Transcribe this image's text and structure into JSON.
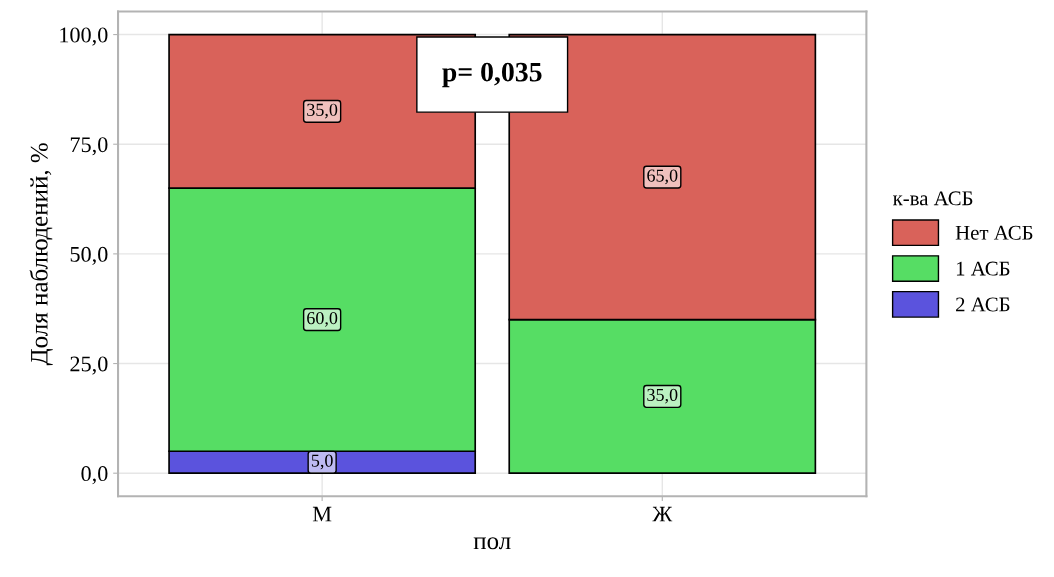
{
  "chart_data": {
    "type": "bar",
    "stacked": true,
    "categories": [
      "М",
      "Ж"
    ],
    "series": [
      {
        "name": "2 АСБ",
        "color": "#5b53dd",
        "values": [
          5,
          0
        ],
        "value_labels": [
          "5,0",
          null
        ]
      },
      {
        "name": "1 АСБ",
        "color": "#56dd64",
        "values": [
          60,
          35
        ],
        "value_labels": [
          "60,0",
          "35,0"
        ]
      },
      {
        "name": "Нет АСБ",
        "color": "#d9625a",
        "values": [
          35,
          65
        ],
        "value_labels": [
          "35,0",
          "65,0"
        ]
      }
    ],
    "xlabel": "пол",
    "ylabel": "Доля наблюдений, %",
    "legend_title": "к-ва АСБ",
    "ylim": [
      -5.25,
      105.25
    ],
    "yticks": [
      {
        "value": 0,
        "label": "0,0"
      },
      {
        "value": 25,
        "label": "25,0"
      },
      {
        "value": 50,
        "label": "50,0"
      },
      {
        "value": 75,
        "label": "75,0"
      },
      {
        "value": 100,
        "label": "100,0"
      }
    ],
    "annotations": [
      "p= 0,035"
    ],
    "grid": true,
    "legend": "right"
  }
}
